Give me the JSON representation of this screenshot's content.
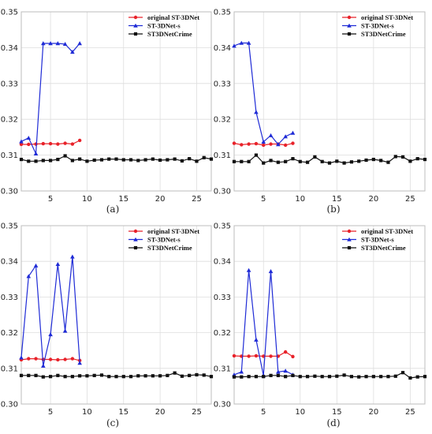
{
  "chart_data": [
    {
      "type": "line",
      "caption": "(a)",
      "xlim": [
        1,
        27
      ],
      "ylim": [
        0.3,
        0.35
      ],
      "xticks": [
        "5",
        "10",
        "15",
        "20",
        "25"
      ],
      "yticks": [
        "0.30",
        "0.31",
        "0.32",
        "0.33",
        "0.34",
        "0.35"
      ],
      "grid": true,
      "legend_position": "top-right",
      "series": [
        {
          "name": "original ST-3DNet",
          "color": "#e8222a",
          "marker": "circle",
          "x": [
            1,
            2,
            3,
            4,
            5,
            6,
            7,
            8,
            9
          ],
          "y": [
            0.313,
            0.313,
            0.3131,
            0.3132,
            0.3132,
            0.3131,
            0.3133,
            0.3131,
            0.3141
          ]
        },
        {
          "name": "ST-3DNet-s",
          "color": "#1f2bd6",
          "marker": "triangle",
          "x": [
            1,
            2,
            3,
            4,
            5,
            6,
            7,
            8,
            9
          ],
          "y": [
            0.3138,
            0.3148,
            0.3104,
            0.3412,
            0.3412,
            0.3412,
            0.341,
            0.3388,
            0.3412
          ]
        },
        {
          "name": "ST3DNetCrime",
          "color": "#111111",
          "marker": "square",
          "x": [
            1,
            2,
            3,
            4,
            5,
            6,
            7,
            8,
            9,
            10,
            11,
            12,
            13,
            14,
            15,
            16,
            17,
            18,
            19,
            20,
            21,
            22,
            23,
            24,
            25,
            26,
            27
          ],
          "y": [
            0.3088,
            0.3083,
            0.3083,
            0.3085,
            0.3085,
            0.3088,
            0.3098,
            0.3085,
            0.3089,
            0.3083,
            0.3086,
            0.3087,
            0.3089,
            0.3089,
            0.3087,
            0.3087,
            0.3085,
            0.3087,
            0.3089,
            0.3086,
            0.3087,
            0.3089,
            0.3084,
            0.309,
            0.3083,
            0.3093,
            0.3089
          ]
        }
      ]
    },
    {
      "type": "line",
      "caption": "(b)",
      "xlim": [
        1,
        27
      ],
      "ylim": [
        0.3,
        0.35
      ],
      "xticks": [
        "5",
        "10",
        "15",
        "20",
        "25"
      ],
      "yticks": [
        "0.30",
        "0.31",
        "0.32",
        "0.33",
        "0.34",
        "0.35"
      ],
      "grid": true,
      "legend_position": "top-right",
      "series": [
        {
          "name": "original ST-3DNet",
          "color": "#e8222a",
          "marker": "circle",
          "x": [
            1,
            2,
            3,
            4,
            5,
            6,
            7,
            8,
            9
          ],
          "y": [
            0.3133,
            0.3129,
            0.3131,
            0.3132,
            0.3128,
            0.3131,
            0.3131,
            0.3128,
            0.3133
          ]
        },
        {
          "name": "ST-3DNet-s",
          "color": "#1f2bd6",
          "marker": "triangle",
          "x": [
            1,
            2,
            3,
            4,
            5,
            6,
            7,
            8,
            9
          ],
          "y": [
            0.3405,
            0.3413,
            0.3413,
            0.322,
            0.3137,
            0.3155,
            0.313,
            0.3152,
            0.3162
          ]
        },
        {
          "name": "ST3DNetCrime",
          "color": "#111111",
          "marker": "square",
          "x": [
            1,
            2,
            3,
            4,
            5,
            6,
            7,
            8,
            9,
            10,
            11,
            12,
            13,
            14,
            15,
            16,
            17,
            18,
            19,
            20,
            21,
            22,
            23,
            24,
            25,
            26,
            27
          ],
          "y": [
            0.3082,
            0.3082,
            0.3082,
            0.31,
            0.3078,
            0.3085,
            0.308,
            0.3082,
            0.309,
            0.3082,
            0.308,
            0.3095,
            0.3082,
            0.3078,
            0.3083,
            0.3078,
            0.3081,
            0.3083,
            0.3086,
            0.3088,
            0.3085,
            0.308,
            0.3096,
            0.3095,
            0.3083,
            0.309,
            0.3088
          ]
        }
      ]
    },
    {
      "type": "line",
      "caption": "(c)",
      "xlim": [
        1,
        27
      ],
      "ylim": [
        0.3,
        0.35
      ],
      "xticks": [
        "5",
        "10",
        "15",
        "20",
        "25"
      ],
      "yticks": [
        "0.30",
        "0.31",
        "0.32",
        "0.33",
        "0.34",
        "0.35"
      ],
      "grid": true,
      "legend_position": "top-right",
      "series": [
        {
          "name": "original ST-3DNet",
          "color": "#e8222a",
          "marker": "circle",
          "x": [
            1,
            2,
            3,
            4,
            5,
            6,
            7,
            8,
            9
          ],
          "y": [
            0.3124,
            0.3127,
            0.3127,
            0.3125,
            0.3125,
            0.3124,
            0.3125,
            0.3127,
            0.3122
          ]
        },
        {
          "name": "ST-3DNet-s",
          "color": "#1f2bd6",
          "marker": "triangle",
          "x": [
            1,
            2,
            3,
            4,
            5,
            6,
            7,
            8,
            9
          ],
          "y": [
            0.313,
            0.3358,
            0.3388,
            0.3107,
            0.3195,
            0.3392,
            0.3205,
            0.3413,
            0.3115
          ]
        },
        {
          "name": "ST3DNetCrime",
          "color": "#111111",
          "marker": "square",
          "x": [
            1,
            2,
            3,
            4,
            5,
            6,
            7,
            8,
            9,
            10,
            11,
            12,
            13,
            14,
            15,
            16,
            17,
            18,
            19,
            20,
            21,
            22,
            23,
            24,
            25,
            26,
            27
          ],
          "y": [
            0.308,
            0.308,
            0.308,
            0.3076,
            0.3077,
            0.308,
            0.3077,
            0.3077,
            0.3079,
            0.3079,
            0.308,
            0.3081,
            0.3077,
            0.3077,
            0.3077,
            0.3077,
            0.3079,
            0.3079,
            0.3079,
            0.3079,
            0.308,
            0.3087,
            0.3078,
            0.308,
            0.3082,
            0.3081,
            0.3077
          ]
        }
      ]
    },
    {
      "type": "line",
      "caption": "(d)",
      "xlim": [
        1,
        27
      ],
      "ylim": [
        0.3,
        0.35
      ],
      "xticks": [
        "5",
        "10",
        "15",
        "20",
        "25"
      ],
      "yticks": [
        "0.30",
        "0.31",
        "0.32",
        "0.33",
        "0.34",
        "0.35"
      ],
      "grid": true,
      "legend_position": "top-right",
      "series": [
        {
          "name": "original ST-3DNet",
          "color": "#e8222a",
          "marker": "circle",
          "x": [
            1,
            2,
            3,
            4,
            5,
            6,
            7,
            8,
            9
          ],
          "y": [
            0.3135,
            0.3134,
            0.3134,
            0.3135,
            0.3134,
            0.3134,
            0.3134,
            0.3146,
            0.3133
          ]
        },
        {
          "name": "ST-3DNet-s",
          "color": "#1f2bd6",
          "marker": "triangle",
          "x": [
            1,
            2,
            3,
            4,
            5,
            6,
            7,
            8,
            9
          ],
          "y": [
            0.3082,
            0.309,
            0.3375,
            0.318,
            0.308,
            0.3372,
            0.309,
            0.3093,
            0.3082
          ]
        },
        {
          "name": "ST3DNetCrime",
          "color": "#111111",
          "marker": "square",
          "x": [
            1,
            2,
            3,
            4,
            5,
            6,
            7,
            8,
            9,
            10,
            11,
            12,
            13,
            14,
            15,
            16,
            17,
            18,
            19,
            20,
            21,
            22,
            23,
            24,
            25,
            26,
            27
          ],
          "y": [
            0.3076,
            0.3076,
            0.3077,
            0.3077,
            0.3077,
            0.308,
            0.308,
            0.3077,
            0.308,
            0.3077,
            0.3077,
            0.3078,
            0.3077,
            0.3077,
            0.3078,
            0.3081,
            0.3077,
            0.3076,
            0.3077,
            0.3077,
            0.3077,
            0.3077,
            0.3078,
            0.3088,
            0.3073,
            0.3076,
            0.3077
          ]
        }
      ]
    }
  ]
}
